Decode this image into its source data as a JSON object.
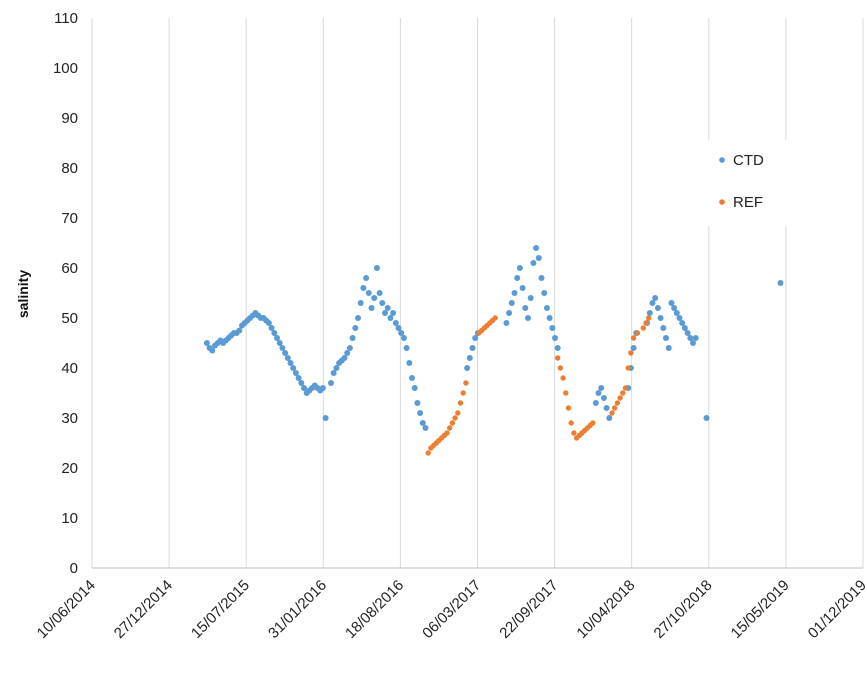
{
  "chart_data": {
    "type": "scatter",
    "title": "",
    "xlabel": "",
    "ylabel": "salinity",
    "x_tick_labels": [
      "10/06/2014",
      "27/12/2014",
      "15/07/2015",
      "31/01/2016",
      "18/08/2016",
      "06/03/2017",
      "22/09/2017",
      "10/04/2018",
      "27/10/2018",
      "15/05/2019",
      "01/12/2019"
    ],
    "xlim": [
      "10/06/2014",
      "01/12/2019"
    ],
    "ylim": [
      0,
      110
    ],
    "y_ticks": [
      0,
      10,
      20,
      30,
      40,
      50,
      60,
      70,
      80,
      90,
      100,
      110
    ],
    "grid": "vertical",
    "legend_position": "right",
    "series": [
      {
        "name": "CTD",
        "color": "#5b9bd5",
        "points": [
          [
            "04/04/2015",
            45
          ],
          [
            "11/04/2015",
            44
          ],
          [
            "18/04/2015",
            43.5
          ],
          [
            "25/04/2015",
            44.5
          ],
          [
            "02/05/2015",
            45
          ],
          [
            "09/05/2015",
            45.5
          ],
          [
            "16/05/2015",
            45
          ],
          [
            "23/05/2015",
            45.5
          ],
          [
            "30/05/2015",
            46
          ],
          [
            "06/06/2015",
            46.5
          ],
          [
            "13/06/2015",
            47
          ],
          [
            "20/06/2015",
            47
          ],
          [
            "27/06/2015",
            47.5
          ],
          [
            "04/07/2015",
            48.5
          ],
          [
            "11/07/2015",
            49
          ],
          [
            "18/07/2015",
            49.5
          ],
          [
            "25/07/2015",
            50
          ],
          [
            "01/08/2015",
            50.5
          ],
          [
            "08/08/2015",
            51
          ],
          [
            "15/08/2015",
            50.5
          ],
          [
            "22/08/2015",
            50
          ],
          [
            "29/08/2015",
            50
          ],
          [
            "05/09/2015",
            49.5
          ],
          [
            "12/09/2015",
            49
          ],
          [
            "19/09/2015",
            48
          ],
          [
            "26/09/2015",
            47
          ],
          [
            "03/10/2015",
            46
          ],
          [
            "10/10/2015",
            45
          ],
          [
            "17/10/2015",
            44
          ],
          [
            "24/10/2015",
            43
          ],
          [
            "31/10/2015",
            42
          ],
          [
            "07/11/2015",
            41
          ],
          [
            "14/11/2015",
            40
          ],
          [
            "21/11/2015",
            39
          ],
          [
            "28/11/2015",
            38
          ],
          [
            "05/12/2015",
            37
          ],
          [
            "12/12/2015",
            36
          ],
          [
            "19/12/2015",
            35
          ],
          [
            "26/12/2015",
            35.5
          ],
          [
            "02/01/2016",
            36
          ],
          [
            "09/01/2016",
            36.5
          ],
          [
            "16/01/2016",
            36
          ],
          [
            "23/01/2016",
            35.5
          ],
          [
            "30/01/2016",
            36
          ],
          [
            "06/02/2016",
            30
          ],
          [
            "20/02/2016",
            37
          ],
          [
            "27/02/2016",
            39
          ],
          [
            "05/03/2016",
            40
          ],
          [
            "12/03/2016",
            41
          ],
          [
            "19/03/2016",
            41.5
          ],
          [
            "26/03/2016",
            42
          ],
          [
            "02/04/2016",
            43
          ],
          [
            "09/04/2016",
            44
          ],
          [
            "16/04/2016",
            46
          ],
          [
            "23/04/2016",
            48
          ],
          [
            "30/04/2016",
            50
          ],
          [
            "07/05/2016",
            53
          ],
          [
            "14/05/2016",
            56
          ],
          [
            "21/05/2016",
            58
          ],
          [
            "28/05/2016",
            55
          ],
          [
            "04/06/2016",
            52
          ],
          [
            "11/06/2016",
            54
          ],
          [
            "18/06/2016",
            60
          ],
          [
            "25/06/2016",
            55
          ],
          [
            "02/07/2016",
            53
          ],
          [
            "09/07/2016",
            51
          ],
          [
            "16/07/2016",
            52
          ],
          [
            "23/07/2016",
            50
          ],
          [
            "30/07/2016",
            51
          ],
          [
            "06/08/2016",
            49
          ],
          [
            "13/08/2016",
            48
          ],
          [
            "20/08/2016",
            47
          ],
          [
            "27/08/2016",
            46
          ],
          [
            "03/09/2016",
            44
          ],
          [
            "10/09/2016",
            41
          ],
          [
            "17/09/2016",
            38
          ],
          [
            "24/09/2016",
            36
          ],
          [
            "01/10/2016",
            33
          ],
          [
            "08/10/2016",
            31
          ],
          [
            "15/10/2016",
            29
          ],
          [
            "22/10/2016",
            28
          ],
          [
            "07/02/2017",
            40
          ],
          [
            "14/02/2017",
            42
          ],
          [
            "21/02/2017",
            44
          ],
          [
            "28/02/2017",
            46
          ],
          [
            "07/03/2017",
            47
          ],
          [
            "20/05/2017",
            49
          ],
          [
            "27/05/2017",
            51
          ],
          [
            "03/06/2017",
            53
          ],
          [
            "10/06/2017",
            55
          ],
          [
            "17/06/2017",
            58
          ],
          [
            "24/06/2017",
            60
          ],
          [
            "01/07/2017",
            56
          ],
          [
            "08/07/2017",
            52
          ],
          [
            "15/07/2017",
            50
          ],
          [
            "22/07/2017",
            54
          ],
          [
            "29/07/2017",
            61
          ],
          [
            "05/08/2017",
            64
          ],
          [
            "12/08/2017",
            62
          ],
          [
            "19/08/2017",
            58
          ],
          [
            "26/08/2017",
            55
          ],
          [
            "02/09/2017",
            52
          ],
          [
            "09/09/2017",
            50
          ],
          [
            "16/09/2017",
            48
          ],
          [
            "23/09/2017",
            46
          ],
          [
            "30/09/2017",
            44
          ],
          [
            "07/01/2018",
            33
          ],
          [
            "14/01/2018",
            35
          ],
          [
            "21/01/2018",
            36
          ],
          [
            "28/01/2018",
            34
          ],
          [
            "04/02/2018",
            32
          ],
          [
            "11/02/2018",
            30
          ],
          [
            "01/04/2018",
            36
          ],
          [
            "08/04/2018",
            40
          ],
          [
            "15/04/2018",
            44
          ],
          [
            "22/04/2018",
            47
          ],
          [
            "20/05/2018",
            49
          ],
          [
            "27/05/2018",
            51
          ],
          [
            "03/06/2018",
            53
          ],
          [
            "10/06/2018",
            54
          ],
          [
            "17/06/2018",
            52
          ],
          [
            "24/06/2018",
            50
          ],
          [
            "01/07/2018",
            48
          ],
          [
            "08/07/2018",
            46
          ],
          [
            "15/07/2018",
            44
          ],
          [
            "22/07/2018",
            53
          ],
          [
            "29/07/2018",
            52
          ],
          [
            "05/08/2018",
            51
          ],
          [
            "12/08/2018",
            50
          ],
          [
            "19/08/2018",
            49
          ],
          [
            "26/08/2018",
            48
          ],
          [
            "02/09/2018",
            47
          ],
          [
            "09/09/2018",
            46
          ],
          [
            "16/09/2018",
            45
          ],
          [
            "23/09/2018",
            46
          ],
          [
            "21/10/2018",
            30
          ],
          [
            "01/05/2019",
            57
          ]
        ]
      },
      {
        "name": "REF",
        "color": "#ed7d31",
        "points": [
          [
            "29/10/2016",
            23
          ],
          [
            "05/11/2016",
            24
          ],
          [
            "12/11/2016",
            24.5
          ],
          [
            "19/11/2016",
            25
          ],
          [
            "26/11/2016",
            25.5
          ],
          [
            "03/12/2016",
            26
          ],
          [
            "10/12/2016",
            26.5
          ],
          [
            "17/12/2016",
            27
          ],
          [
            "24/12/2016",
            28
          ],
          [
            "31/12/2016",
            29
          ],
          [
            "07/01/2017",
            30
          ],
          [
            "14/01/2017",
            31
          ],
          [
            "21/01/2017",
            33
          ],
          [
            "28/01/2017",
            35
          ],
          [
            "04/02/2017",
            37
          ],
          [
            "10/03/2017",
            47
          ],
          [
            "17/03/2017",
            47.5
          ],
          [
            "24/03/2017",
            48
          ],
          [
            "31/03/2017",
            48.5
          ],
          [
            "07/04/2017",
            49
          ],
          [
            "14/04/2017",
            49.5
          ],
          [
            "21/04/2017",
            50
          ],
          [
            "30/09/2017",
            42
          ],
          [
            "07/10/2017",
            40
          ],
          [
            "14/10/2017",
            38
          ],
          [
            "21/10/2017",
            35
          ],
          [
            "28/10/2017",
            32
          ],
          [
            "04/11/2017",
            29
          ],
          [
            "11/11/2017",
            27
          ],
          [
            "18/11/2017",
            26
          ],
          [
            "25/11/2017",
            26.5
          ],
          [
            "02/12/2017",
            27
          ],
          [
            "09/12/2017",
            27.5
          ],
          [
            "16/12/2017",
            28
          ],
          [
            "23/12/2017",
            28.5
          ],
          [
            "30/12/2017",
            29
          ],
          [
            "18/02/2018",
            31
          ],
          [
            "25/02/2018",
            32
          ],
          [
            "04/03/2018",
            33
          ],
          [
            "11/03/2018",
            34
          ],
          [
            "18/03/2018",
            35
          ],
          [
            "25/03/2018",
            36
          ],
          [
            "01/04/2018",
            40
          ],
          [
            "08/04/2018",
            43
          ],
          [
            "15/04/2018",
            46
          ],
          [
            "25/04/2018",
            47
          ],
          [
            "10/05/2018",
            48
          ],
          [
            "17/05/2018",
            49
          ],
          [
            "24/05/2018",
            50
          ]
        ]
      }
    ]
  }
}
